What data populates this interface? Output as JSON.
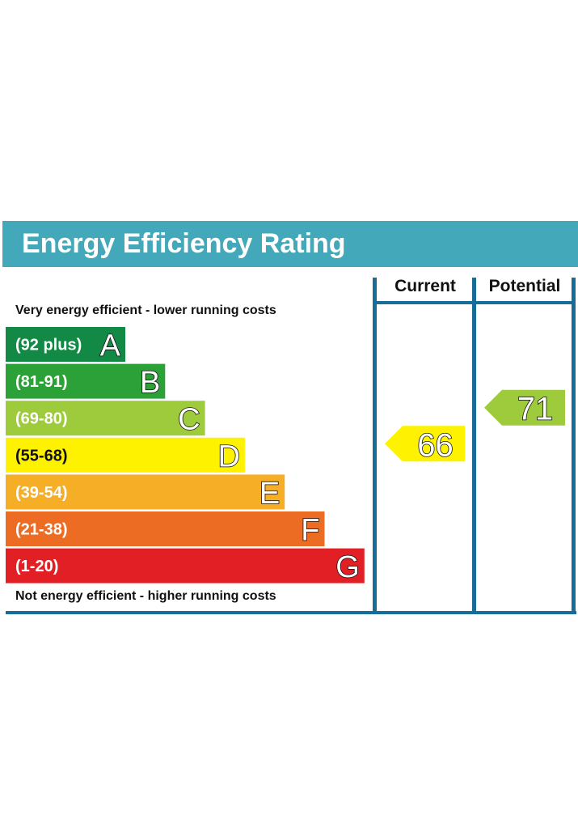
{
  "header": {
    "title": "Energy Efficiency Rating"
  },
  "notes": {
    "top": "Very energy efficient - lower running costs",
    "bottom": "Not energy efficient - higher running costs"
  },
  "columns": {
    "current": "Current",
    "potential": "Potential"
  },
  "chart_data": {
    "type": "bar",
    "bands": [
      {
        "range": "(92 plus)",
        "letter": "A",
        "color": "#128a45"
      },
      {
        "range": "(81-91)",
        "letter": "B",
        "color": "#2ba137"
      },
      {
        "range": "(69-80)",
        "letter": "C",
        "color": "#9dcb3b"
      },
      {
        "range": "(55-68)",
        "letter": "D",
        "color": "#fef200"
      },
      {
        "range": "(39-54)",
        "letter": "E",
        "color": "#f6ae26"
      },
      {
        "range": "(21-38)",
        "letter": "F",
        "color": "#ec6c24"
      },
      {
        "range": "(1-20)",
        "letter": "G",
        "color": "#e31f26"
      }
    ],
    "current": {
      "value": 66,
      "band": "D",
      "color": "#fef200"
    },
    "potential": {
      "value": 71,
      "band": "C",
      "color": "#9dcb3b"
    },
    "frame_color": "#186c99"
  }
}
